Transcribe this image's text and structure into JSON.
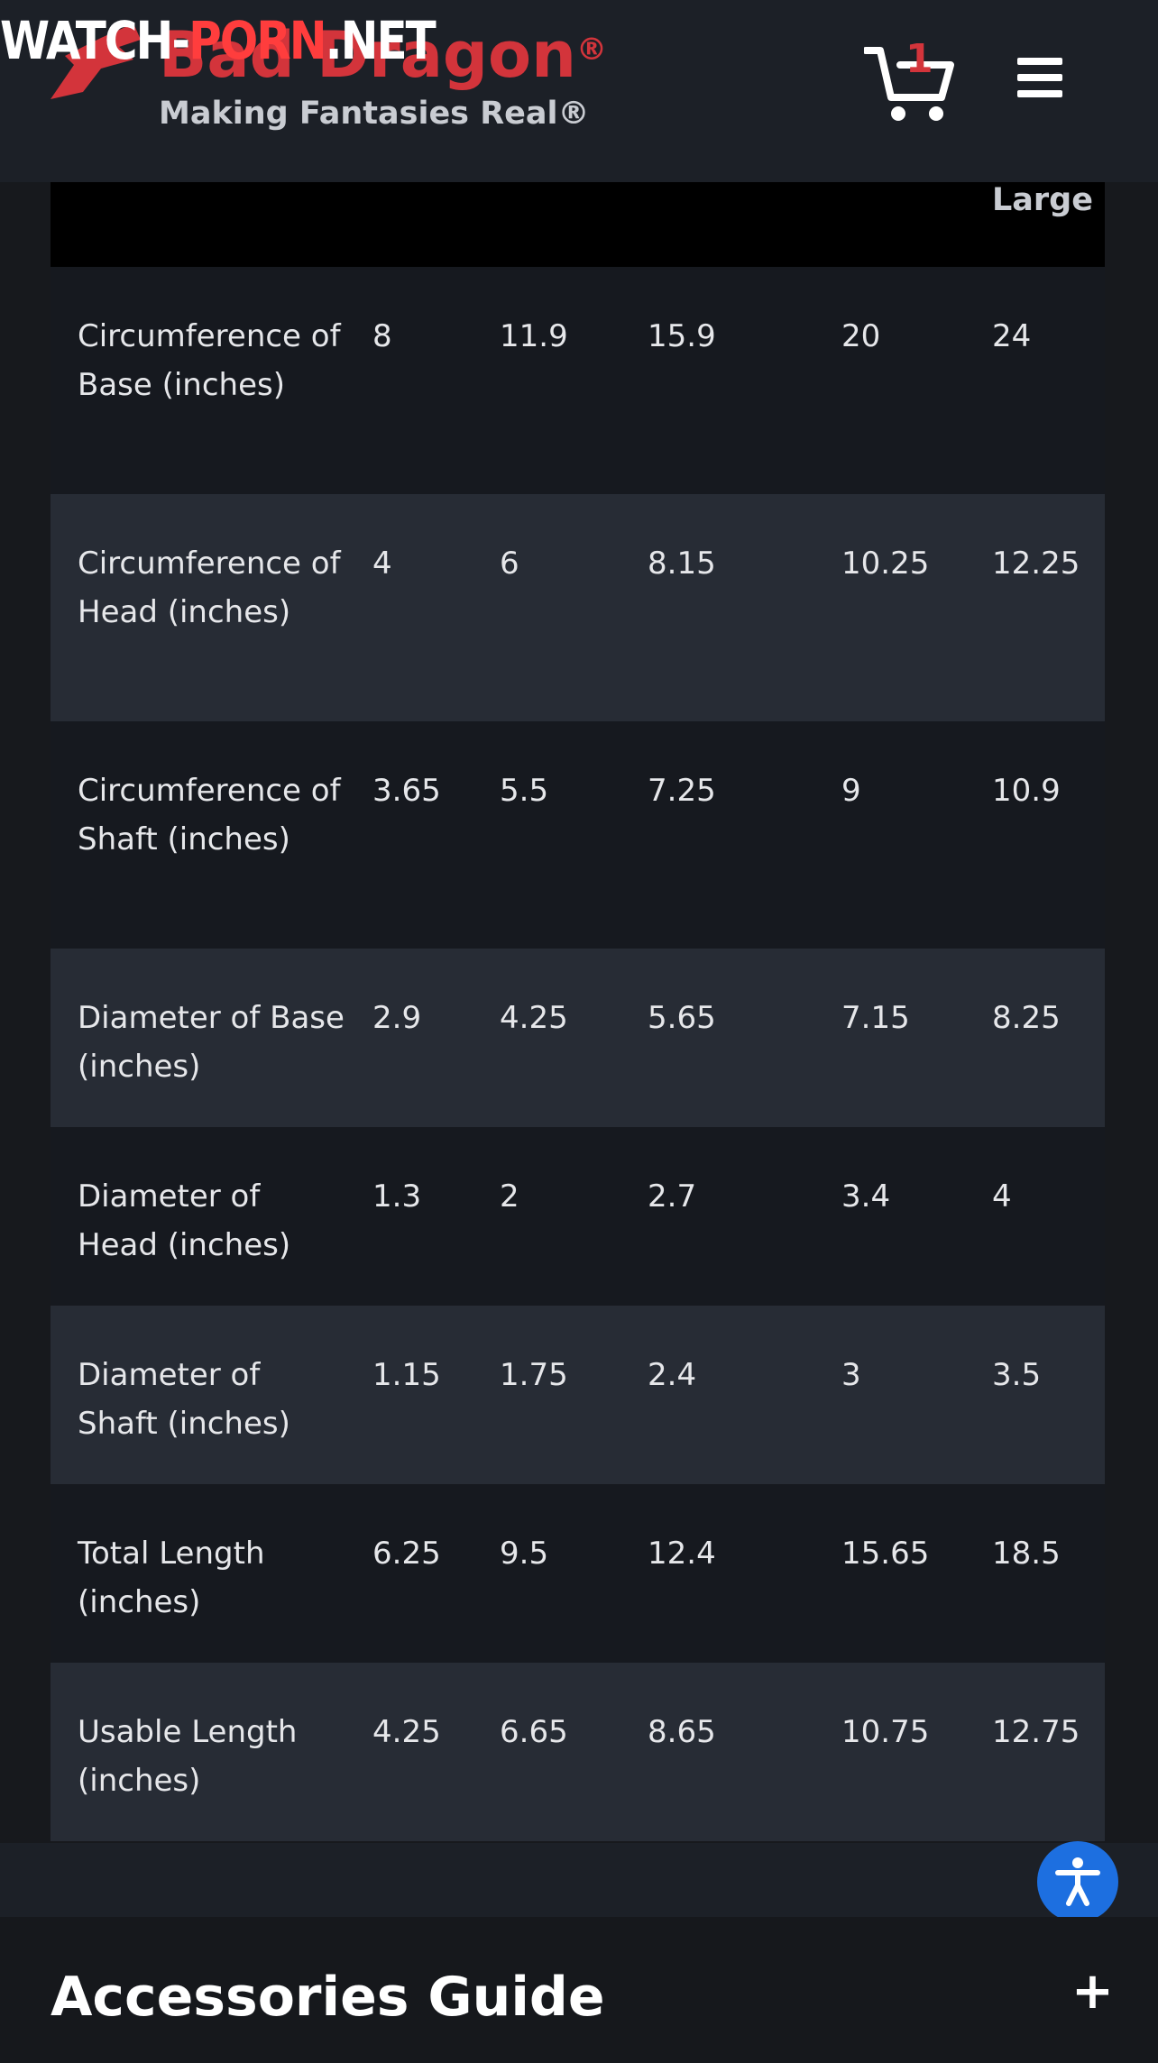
{
  "watermark": {
    "left": "WATCH-",
    "mid": "PORN",
    "right": ".NET"
  },
  "header": {
    "brand": "Bad Dragon",
    "registered": "®",
    "tagline": "Making Fantasies Real®",
    "cart_count": "1",
    "icons": {
      "logo": "dragon-logo-icon",
      "cart": "cart-icon",
      "menu": "hamburger-menu-icon"
    }
  },
  "table": {
    "header_visible": "Large",
    "rows": [
      {
        "label": "Circumference of Base (inches)",
        "values": [
          "8",
          "11.9",
          "15.9",
          "20",
          "24"
        ]
      },
      {
        "label": "Circumference of Head (inches)",
        "values": [
          "4",
          "6",
          "8.15",
          "10.25",
          "12.25"
        ]
      },
      {
        "label": "Circumference of Shaft (inches)",
        "values": [
          "3.65",
          "5.5",
          "7.25",
          "9",
          "10.9"
        ]
      },
      {
        "label": "Diameter of Base (inches)",
        "values": [
          "2.9",
          "4.25",
          "5.65",
          "7.15",
          "8.25"
        ]
      },
      {
        "label": "Diameter of Head (inches)",
        "values": [
          "1.3",
          "2",
          "2.7",
          "3.4",
          "4"
        ]
      },
      {
        "label": "Diameter of Shaft (inches)",
        "values": [
          "1.15",
          "1.75",
          "2.4",
          "3",
          "3.5"
        ]
      },
      {
        "label": "Total Length (inches)",
        "values": [
          "6.25",
          "9.5",
          "12.4",
          "15.65",
          "18.5"
        ]
      },
      {
        "label": "Usable Length (inches)",
        "values": [
          "4.25",
          "6.65",
          "8.65",
          "10.75",
          "12.75"
        ]
      }
    ]
  },
  "accessories": {
    "title": "Accessories Guide",
    "toggle": "+"
  },
  "accessibility_button": {
    "icon": "accessibility-icon"
  },
  "colors": {
    "brand_red": "#d3343b",
    "accent_blue": "#1d6fe0"
  }
}
